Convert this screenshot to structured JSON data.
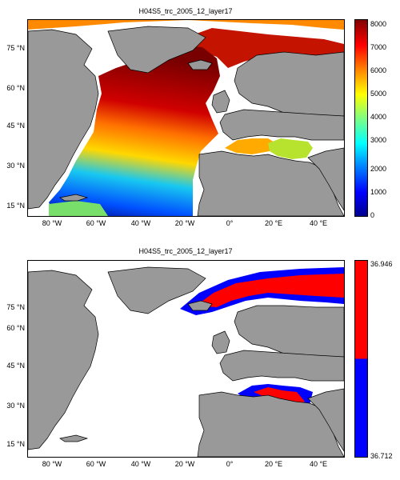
{
  "panels": [
    {
      "title": "H04S5_trc_2005_12_layer17",
      "y_ticks": [
        "75 °N",
        "60 °N",
        "45 °N",
        "30 °N",
        "15 °N"
      ],
      "x_ticks": [
        "80 °W",
        "60 °W",
        "40 °W",
        "20 °W",
        "0°",
        "20 °E",
        "40 °E"
      ],
      "colorbar": {
        "ticks": [
          "8000",
          "7000",
          "6000",
          "5000",
          "4000",
          "3000",
          "2000",
          "1000",
          "0"
        ]
      }
    },
    {
      "title": "H04S5_trc_2005_12_layer17",
      "y_ticks": [
        "75 °N",
        "60 °N",
        "45 °N",
        "30 °N",
        "15 °N"
      ],
      "x_ticks": [
        "80 °W",
        "60 °W",
        "40 °W",
        "20 °W",
        "0°",
        "20 °E",
        "40 °E"
      ],
      "colorbar": {
        "ticks": [
          "36.946",
          "36.712"
        ]
      }
    }
  ],
  "chart_data": [
    {
      "type": "heatmap",
      "title": "H04S5_trc_2005_12_layer17",
      "x_range_lon": [
        -90,
        50
      ],
      "y_range_lat": [
        10,
        85
      ],
      "color_range": [
        0,
        8000
      ],
      "colormap": "jet",
      "colors": {
        "land": "#999999",
        "nodata": "#ffffff"
      }
    },
    {
      "type": "heatmap",
      "title": "H04S5_trc_2005_12_layer17",
      "x_range_lon": [
        -90,
        50
      ],
      "y_range_lat": [
        10,
        85
      ],
      "color_range": [
        36.712,
        36.946
      ],
      "colors": {
        "high": "#ff0000",
        "low": "#0000ff",
        "land": "#999999",
        "nodata": "#ffffff"
      }
    }
  ]
}
